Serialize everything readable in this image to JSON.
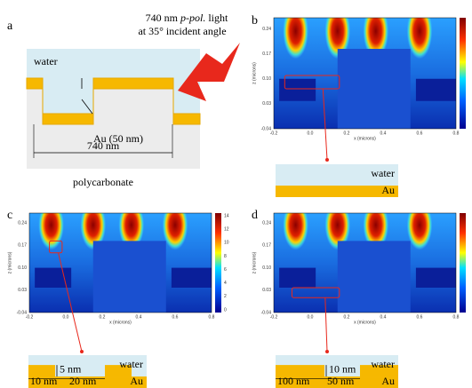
{
  "panel_a": {
    "label": "a",
    "light_size": "740 nm",
    "light_pol": "p-pol.",
    "light_word": "light",
    "angle": "at 35° incident angle",
    "water": "water",
    "thickness": "Au (50 nm)",
    "period": "740 nm",
    "substrate": "polycarbonate"
  },
  "maps": [
    {
      "label": "b",
      "z_label": "z (microns)",
      "x_label": "x (microns)",
      "z_ticks": [
        "0.24",
        "0.17",
        "0.10",
        "0.03",
        "-0.04"
      ],
      "x_ticks": [
        "-0.2",
        "0.0",
        "0.2",
        "0.4",
        "0.6",
        "0.8"
      ],
      "inset": {
        "water": "water",
        "metal": "Au"
      }
    },
    {
      "label": "c",
      "z_label": "z (microns)",
      "x_label": "x (microns)",
      "z_ticks": [
        "0.24",
        "0.17",
        "0.10",
        "0.03",
        "-0.04"
      ],
      "x_ticks": [
        "-0.2",
        "0.0",
        "0.2",
        "0.4",
        "0.6",
        "0.8"
      ],
      "colorbar_ticks": [
        "14",
        "12",
        "10",
        "8",
        "6",
        "4",
        "2",
        "0"
      ],
      "inset": {
        "water": "water",
        "metal": "Au",
        "height": "5 nm",
        "width_left": "10 nm",
        "width_right": "20 nm"
      }
    },
    {
      "label": "d",
      "z_label": "z (microns)",
      "x_label": "x (microns)",
      "z_ticks": [
        "0.24",
        "0.17",
        "0.10",
        "0.03",
        "-0.04"
      ],
      "x_ticks": [
        "-0.2",
        "0.0",
        "0.2",
        "0.4",
        "0.6",
        "0.8"
      ],
      "inset": {
        "water": "water",
        "metal": "Au",
        "height": "10 nm",
        "width_left": "100 nm",
        "width_right": "50 nm"
      }
    }
  ]
}
